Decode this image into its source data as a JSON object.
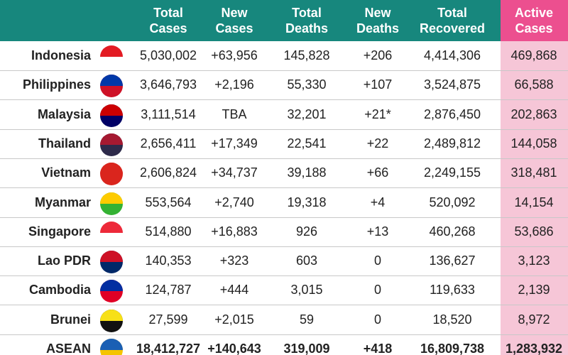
{
  "table": {
    "header": [
      "Total Cases",
      "New Cases",
      "Total Deaths",
      "New Deaths",
      "Total Recovered",
      "Active Cases"
    ],
    "rows": [
      [
        "Indonesia",
        "5,030,002",
        "+63,956",
        "145,828",
        "+206",
        "4,414,306",
        "469,868"
      ],
      [
        "Philippines",
        "3,646,793",
        "+2,196",
        "55,330",
        "+107",
        "3,524,875",
        "66,588"
      ],
      [
        "Malaysia",
        "3,111,514",
        "TBA",
        "32,201",
        "+21*",
        "2,876,450",
        "202,863"
      ],
      [
        "Thailand",
        "2,656,411",
        "+17,349",
        "22,541",
        "+22",
        "2,489,812",
        "144,058"
      ],
      [
        "Vietnam",
        "2,606,824",
        "+34,737",
        "39,188",
        "+66",
        "2,249,155",
        "318,481"
      ],
      [
        "Myanmar",
        "553,564",
        "+2,740",
        "19,318",
        "+4",
        "520,092",
        "14,154"
      ],
      [
        "Singapore",
        "514,880",
        "+16,883",
        "926",
        "+13",
        "460,268",
        "53,686"
      ],
      [
        "Lao PDR",
        "140,353",
        "+323",
        "603",
        "0",
        "136,627",
        "3,123"
      ],
      [
        "Cambodia",
        "124,787",
        "+444",
        "3,015",
        "0",
        "119,633",
        "2,139"
      ],
      [
        "Brunei",
        "27,599",
        "+2,015",
        "59",
        "0",
        "18,520",
        "8,972"
      ],
      [
        "ASEAN",
        "18,412,727",
        "+140,643",
        "319,009",
        "+418",
        "16,809,738",
        "1,283,932"
      ]
    ]
  }
}
